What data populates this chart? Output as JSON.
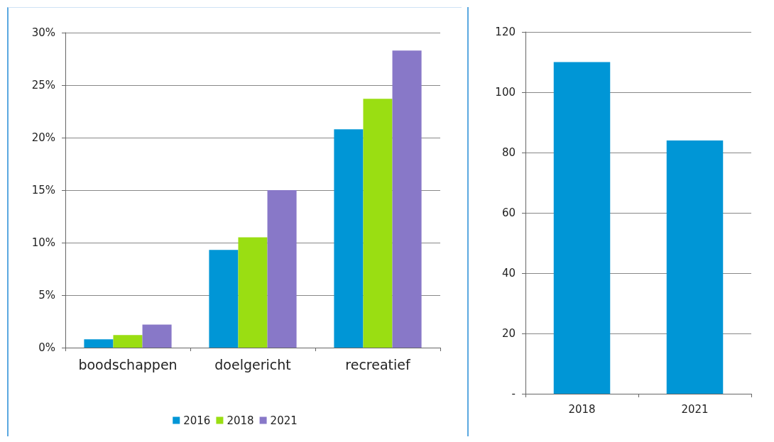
{
  "chart_data": [
    {
      "type": "bar",
      "categories": [
        "boodschappen",
        "doelgericht",
        "recreatief"
      ],
      "series": [
        {
          "name": "2016",
          "color": "#0096d6",
          "values": [
            0.8,
            9.3,
            20.8
          ]
        },
        {
          "name": "2018",
          "color": "#9ade12",
          "values": [
            1.2,
            10.5,
            23.7
          ]
        },
        {
          "name": "2021",
          "color": "#8878c8",
          "values": [
            2.2,
            15.0,
            28.3
          ]
        }
      ],
      "ylim": [
        0,
        30
      ],
      "yticks": [
        {
          "value": 0,
          "label": "0%"
        },
        {
          "value": 5,
          "label": "5%"
        },
        {
          "value": 10,
          "label": "10%"
        },
        {
          "value": 15,
          "label": "15%"
        },
        {
          "value": 20,
          "label": "20%"
        },
        {
          "value": 25,
          "label": "25%"
        },
        {
          "value": 30,
          "label": "30%"
        }
      ],
      "grid": "y",
      "legend": "bottom"
    },
    {
      "type": "bar",
      "categories": [
        "2018",
        "2021"
      ],
      "series": [
        {
          "color": "#0096d6",
          "values": [
            110,
            84
          ]
        }
      ],
      "ylim": [
        0,
        120
      ],
      "yticks": [
        {
          "value": 0,
          "label": "-"
        },
        20,
        40,
        60,
        80,
        100,
        120
      ],
      "grid": "y",
      "legend": false
    }
  ]
}
